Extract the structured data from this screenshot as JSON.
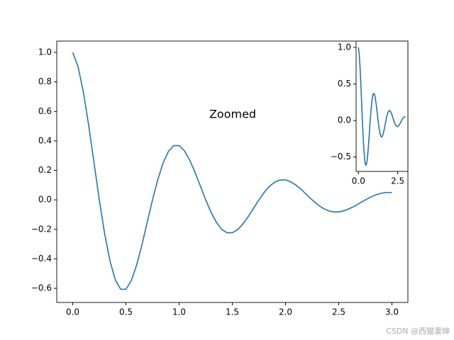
{
  "chart_data": [
    {
      "type": "line",
      "color": "#1f77b4",
      "x": [
        0,
        0.05,
        0.1,
        0.15,
        0.2,
        0.25,
        0.3,
        0.35,
        0.4,
        0.45,
        0.5,
        0.55,
        0.6,
        0.65,
        0.7,
        0.75,
        0.8,
        0.85,
        0.9,
        0.95,
        1.0,
        1.05,
        1.1,
        1.15,
        1.2,
        1.25,
        1.3,
        1.35,
        1.4,
        1.45,
        1.5,
        1.55,
        1.6,
        1.65,
        1.7,
        1.75,
        1.8,
        1.85,
        1.9,
        1.95,
        2.0,
        2.05,
        2.1,
        2.15,
        2.2,
        2.25,
        2.3,
        2.35,
        2.4,
        2.45,
        2.5,
        2.55,
        2.6,
        2.65,
        2.7,
        2.75,
        2.8,
        2.85,
        2.9,
        2.95,
        3.0
      ],
      "values": [
        1,
        0.905,
        0.732,
        0.506,
        0.253,
        0,
        -0.229,
        -0.414,
        -0.542,
        -0.606,
        -0.607,
        -0.549,
        -0.444,
        -0.307,
        -0.153,
        0,
        0.139,
        0.251,
        0.329,
        0.368,
        0.368,
        0.333,
        0.269,
        0.186,
        0.093,
        0,
        -0.084,
        -0.152,
        -0.2,
        -0.223,
        -0.223,
        -0.202,
        -0.163,
        -0.113,
        -0.057,
        0,
        0.051,
        0.092,
        0.121,
        0.135,
        0.135,
        0.122,
        0.099,
        0.069,
        0.034,
        0,
        -0.031,
        -0.056,
        -0.073,
        -0.082,
        -0.082,
        -0.074,
        -0.06,
        -0.042,
        -0.021,
        0,
        0.019,
        0.034,
        0.045,
        0.05,
        0.05
      ],
      "xlim": [
        -0.15,
        3.15
      ],
      "ylim": [
        -0.696,
        1.077
      ],
      "xticks": [
        {
          "value": 0,
          "label": "0.0"
        },
        0.5,
        {
          "value": 1,
          "label": "1.0"
        },
        1.5,
        {
          "value": 2,
          "label": "2.0"
        },
        2.5,
        {
          "value": 3,
          "label": "3.0"
        }
      ],
      "yticks": [
        {
          "value": -0.6,
          "label": "−0.6"
        },
        {
          "value": -0.4,
          "label": "−0.4"
        },
        {
          "value": -0.2,
          "label": "−0.2"
        },
        {
          "value": 0,
          "label": "0.0"
        },
        0.2,
        0.4,
        0.6,
        0.8,
        {
          "value": 1,
          "label": "1.0"
        }
      ],
      "annotation": "Zoomed"
    },
    {
      "type": "line",
      "color": "#1f77b4",
      "x": [
        0,
        0.05,
        0.1,
        0.15,
        0.2,
        0.25,
        0.3,
        0.35,
        0.4,
        0.45,
        0.5,
        0.55,
        0.6,
        0.65,
        0.7,
        0.75,
        0.8,
        0.85,
        0.9,
        0.95,
        1.0,
        1.05,
        1.1,
        1.15,
        1.2,
        1.25,
        1.3,
        1.35,
        1.4,
        1.45,
        1.5,
        1.55,
        1.6,
        1.65,
        1.7,
        1.75,
        1.8,
        1.85,
        1.9,
        1.95,
        2.0,
        2.05,
        2.1,
        2.15,
        2.2,
        2.25,
        2.3,
        2.35,
        2.4,
        2.45,
        2.5,
        2.55,
        2.6,
        2.65,
        2.7,
        2.75,
        2.8,
        2.85,
        2.9,
        2.95,
        3.0
      ],
      "values": [
        1,
        0.905,
        0.732,
        0.506,
        0.253,
        0,
        -0.229,
        -0.414,
        -0.542,
        -0.606,
        -0.607,
        -0.549,
        -0.444,
        -0.307,
        -0.153,
        0,
        0.139,
        0.251,
        0.329,
        0.368,
        0.368,
        0.333,
        0.269,
        0.186,
        0.093,
        0,
        -0.084,
        -0.152,
        -0.2,
        -0.223,
        -0.223,
        -0.202,
        -0.163,
        -0.113,
        -0.057,
        0,
        0.051,
        0.092,
        0.121,
        0.135,
        0.135,
        0.122,
        0.099,
        0.069,
        0.034,
        0,
        -0.031,
        -0.056,
        -0.073,
        -0.082,
        -0.082,
        -0.074,
        -0.06,
        -0.042,
        -0.021,
        0,
        0.019,
        0.034,
        0.045,
        0.05,
        0.05
      ],
      "xlim": [
        -0.15,
        3.15
      ],
      "ylim": [
        -0.697,
        1.087
      ],
      "xticks": [
        {
          "value": 0,
          "label": "0.0"
        },
        2.5
      ],
      "yticks": [
        {
          "value": -0.5,
          "label": "−0.5"
        },
        {
          "value": 0,
          "label": "0.0"
        },
        0.5,
        {
          "value": 1,
          "label": "1.0"
        }
      ]
    }
  ],
  "watermark": "CSDN @西猫雷婶"
}
